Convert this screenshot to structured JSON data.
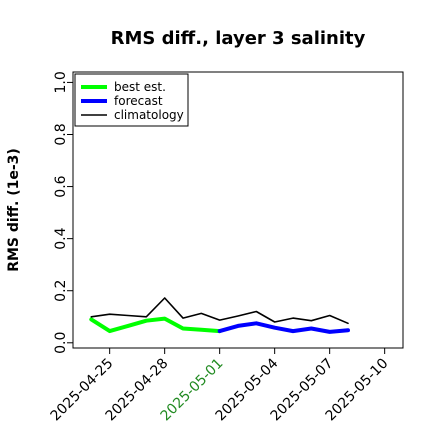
{
  "chart_data": {
    "type": "line",
    "title": "RMS diff., layer 3 salinity",
    "xlabel": "",
    "ylabel": "RMS diff. (1e-3)",
    "xlim": [
      "2025-04-23",
      "2025-05-11"
    ],
    "ylim": [
      -0.02,
      1.04
    ],
    "yticks": [
      0.0,
      0.2,
      0.4,
      0.6,
      0.8,
      1.0
    ],
    "ytick_labels": [
      "0.0",
      "0.2",
      "0.4",
      "0.6",
      "0.8",
      "1.0"
    ],
    "xticks": [
      "2025-04-25",
      "2025-04-28",
      "2025-05-01",
      "2025-05-04",
      "2025-05-07",
      "2025-05-10"
    ],
    "xtick_colors": [
      "#000000",
      "#000000",
      "#228b22",
      "#000000",
      "#000000",
      "#000000"
    ],
    "grid": false,
    "legend_position": "top-left",
    "series": [
      {
        "name": "best est.",
        "color": "#00ff00",
        "width": "thick",
        "x": [
          "2025-04-24",
          "2025-04-25",
          "2025-04-26",
          "2025-04-27",
          "2025-04-28",
          "2025-04-29",
          "2025-04-30",
          "2025-05-01"
        ],
        "values": [
          0.09,
          0.045,
          0.065,
          0.085,
          0.093,
          0.055,
          0.05,
          0.045
        ]
      },
      {
        "name": "forecast",
        "color": "#0000ff",
        "width": "thick",
        "x": [
          "2025-05-01",
          "2025-05-02",
          "2025-05-03",
          "2025-05-04",
          "2025-05-05",
          "2025-05-06",
          "2025-05-07",
          "2025-05-08"
        ],
        "values": [
          0.045,
          0.065,
          0.075,
          0.058,
          0.045,
          0.055,
          0.042,
          0.048
        ]
      },
      {
        "name": "climatology",
        "color": "#000000",
        "width": "thin",
        "x": [
          "2025-04-24",
          "2025-04-25",
          "2025-04-26",
          "2025-04-27",
          "2025-04-28",
          "2025-04-29",
          "2025-04-30",
          "2025-05-01",
          "2025-05-02",
          "2025-05-03",
          "2025-05-04",
          "2025-05-05",
          "2025-05-06",
          "2025-05-07",
          "2025-05-08"
        ],
        "values": [
          0.1,
          0.11,
          0.105,
          0.1,
          0.172,
          0.095,
          0.113,
          0.087,
          0.103,
          0.12,
          0.08,
          0.095,
          0.085,
          0.105,
          0.075
        ]
      }
    ]
  }
}
